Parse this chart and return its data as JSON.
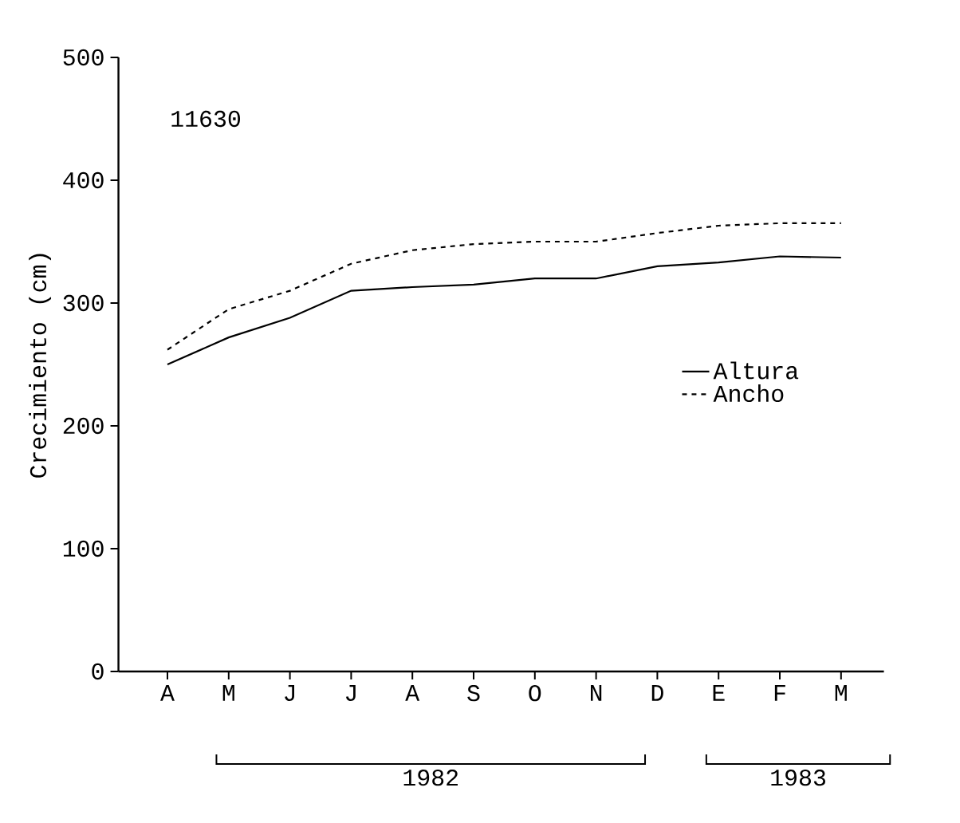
{
  "chart_data": {
    "type": "line",
    "ylabel": "Crecimiento (cm)",
    "categories": [
      "A",
      "M",
      "J",
      "J",
      "A",
      "S",
      "O",
      "N",
      "D",
      "E",
      "F",
      "M"
    ],
    "series": [
      {
        "name": "Altura",
        "color": "#000000",
        "line_style": "solid",
        "values": [
          250,
          272,
          288,
          310,
          313,
          315,
          320,
          320,
          330,
          333,
          338,
          337
        ]
      },
      {
        "name": "Ancho",
        "color": "#000000",
        "line_style": "dashed",
        "values": [
          262,
          295,
          310,
          332,
          343,
          348,
          350,
          350,
          357,
          363,
          365,
          365
        ]
      }
    ],
    "ylim": [
      0,
      500
    ],
    "yticks": [
      0,
      100,
      200,
      300,
      400,
      500
    ],
    "grid": false,
    "legend": "right",
    "marker": "none",
    "annotations": [
      "11630",
      "1982",
      "1983"
    ]
  }
}
